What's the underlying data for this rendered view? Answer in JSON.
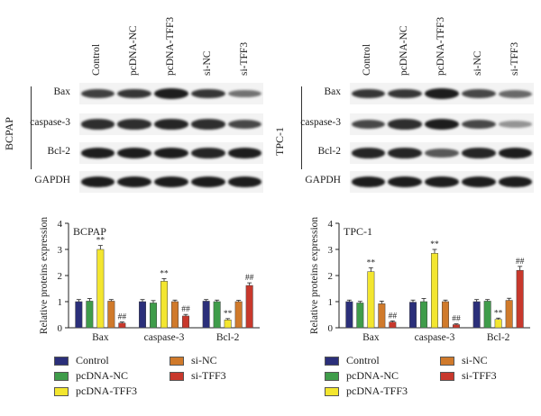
{
  "blots": [
    {
      "id": "bcpap",
      "cell_line": "BCPAP",
      "lanes": [
        "Control",
        "pcDNA-NC",
        "pcDNA-TFF3",
        "si-NC",
        "si-TFF3"
      ],
      "proteins": [
        "Bax",
        "caspase-3",
        "Bcl-2",
        "GAPDH"
      ]
    },
    {
      "id": "tpc1",
      "cell_line": "TPC-1",
      "lanes": [
        "Control",
        "pcDNA-NC",
        "pcDNA-TFF3",
        "si-NC",
        "si-TFF3"
      ],
      "proteins": [
        "Bax",
        "caspase-3",
        "Bcl-2",
        "GAPDH"
      ]
    }
  ],
  "colors": {
    "Control": "#2b2f7a",
    "pcDNA-NC": "#3f9c4a",
    "pcDNA-TFF3": "#f3e62f",
    "si-NC": "#d07a2b",
    "si-TFF3": "#c8382c"
  },
  "chart_data": [
    {
      "type": "bar",
      "title": "BCPAP",
      "ylabel": "Relative proteins expression",
      "xlabel": "",
      "ylim": [
        0,
        4
      ],
      "yticks": [
        "0",
        "1",
        "2",
        "3",
        "4"
      ],
      "categories": [
        "Bax",
        "caspase-3",
        "Bcl-2"
      ],
      "series": [
        {
          "name": "Control",
          "values": [
            1.0,
            1.0,
            1.02
          ],
          "errors": [
            0.08,
            0.08,
            0.06
          ]
        },
        {
          "name": "pcDNA-NC",
          "values": [
            1.02,
            0.95,
            1.0
          ],
          "errors": [
            0.1,
            0.09,
            0.06
          ]
        },
        {
          "name": "pcDNA-TFF3",
          "values": [
            3.0,
            1.78,
            0.3
          ],
          "errors": [
            0.15,
            0.1,
            0.05
          ]
        },
        {
          "name": "si-NC",
          "values": [
            1.02,
            1.0,
            1.0
          ],
          "errors": [
            0.06,
            0.06,
            0.05
          ]
        },
        {
          "name": "si-TFF3",
          "values": [
            0.18,
            0.45,
            1.62
          ],
          "errors": [
            0.04,
            0.06,
            0.1
          ]
        }
      ],
      "annotations": [
        {
          "category": "Bax",
          "series": "pcDNA-TFF3",
          "text": "**"
        },
        {
          "category": "Bax",
          "series": "si-TFF3",
          "text": "##"
        },
        {
          "category": "caspase-3",
          "series": "pcDNA-TFF3",
          "text": "**"
        },
        {
          "category": "caspase-3",
          "series": "si-TFF3",
          "text": "##"
        },
        {
          "category": "Bcl-2",
          "series": "pcDNA-TFF3",
          "text": "**"
        },
        {
          "category": "Bcl-2",
          "series": "si-TFF3",
          "text": "##"
        }
      ]
    },
    {
      "type": "bar",
      "title": "TPC-1",
      "ylabel": "Relative proteins expression",
      "xlabel": "",
      "ylim": [
        0,
        4
      ],
      "yticks": [
        "0",
        "1",
        "2",
        "3",
        "4"
      ],
      "categories": [
        "Bax",
        "caspase-3",
        "Bcl-2"
      ],
      "series": [
        {
          "name": "Control",
          "values": [
            1.0,
            0.98,
            1.0
          ],
          "errors": [
            0.06,
            0.08,
            0.08
          ]
        },
        {
          "name": "pcDNA-NC",
          "values": [
            0.95,
            1.0,
            1.02
          ],
          "errors": [
            0.06,
            0.12,
            0.06
          ]
        },
        {
          "name": "pcDNA-TFF3",
          "values": [
            2.15,
            2.85,
            0.32
          ],
          "errors": [
            0.15,
            0.15,
            0.05
          ]
        },
        {
          "name": "si-NC",
          "values": [
            0.92,
            1.0,
            1.05
          ],
          "errors": [
            0.1,
            0.06,
            0.08
          ]
        },
        {
          "name": "si-TFF3",
          "values": [
            0.22,
            0.12,
            2.2
          ],
          "errors": [
            0.04,
            0.03,
            0.15
          ]
        }
      ],
      "annotations": [
        {
          "category": "Bax",
          "series": "pcDNA-TFF3",
          "text": "**"
        },
        {
          "category": "Bax",
          "series": "si-TFF3",
          "text": "##"
        },
        {
          "category": "caspase-3",
          "series": "pcDNA-TFF3",
          "text": "**"
        },
        {
          "category": "caspase-3",
          "series": "si-TFF3",
          "text": "##"
        },
        {
          "category": "Bcl-2",
          "series": "pcDNA-TFF3",
          "text": "**"
        },
        {
          "category": "Bcl-2",
          "series": "si-TFF3",
          "text": "##"
        }
      ]
    }
  ],
  "legend": {
    "items": [
      "Control",
      "si-NC",
      "pcDNA-NC",
      "si-TFF3",
      "pcDNA-TFF3"
    ]
  }
}
